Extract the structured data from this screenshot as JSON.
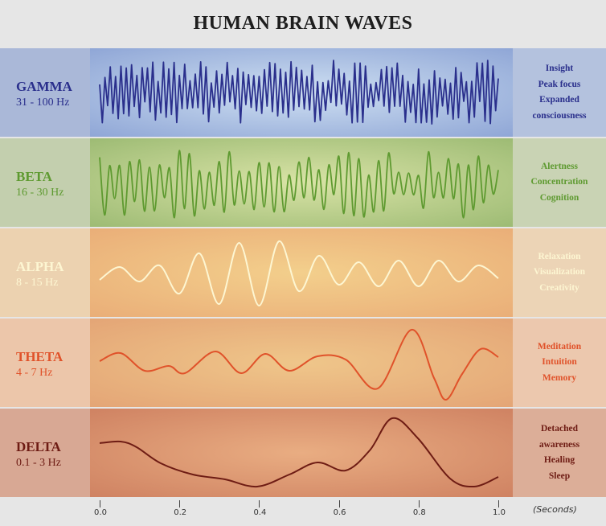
{
  "title": "HUMAN BRAIN WAVES",
  "bands": [
    {
      "name": "GAMMA",
      "freq": "31 - 100 Hz",
      "effects": [
        "Insight",
        "Peak focus",
        "Expanded",
        "consciousness"
      ],
      "color": "#2a2f8c",
      "left_bg": "#aab8d8",
      "mid_center": "#cfe0f2",
      "mid_edge": "#8fa6d6",
      "right_bg": "#b4c2de"
    },
    {
      "name": "BETA",
      "freq": "16 - 30 Hz",
      "effects": [
        "Alertness",
        "Concentration",
        "Cognition"
      ],
      "color": "#5e9a30",
      "left_bg": "#c3cfae",
      "mid_center": "#d9e3a6",
      "mid_edge": "#9dbb74",
      "right_bg": "#c9d3b4"
    },
    {
      "name": "ALPHA",
      "freq": "8 - 15 Hz",
      "effects": [
        "Relaxation",
        "Visualization",
        "Creativity"
      ],
      "color": "#fdf6d2",
      "left_bg": "#ecd2b0",
      "mid_center": "#f3cf8c",
      "mid_edge": "#eaae78",
      "right_bg": "#ecd4b6"
    },
    {
      "name": "THETA",
      "freq": "4 - 7 Hz",
      "effects": [
        "Meditation",
        "Intuition",
        "Memory"
      ],
      "color": "#e0522a",
      "left_bg": "#ecc6aa",
      "mid_center": "#efc68a",
      "mid_edge": "#e4a576",
      "right_bg": "#ecc8ae"
    },
    {
      "name": "DELTA",
      "freq": "0.1 - 3 Hz",
      "effects": [
        "Detached",
        "awareness",
        "Healing",
        "Sleep"
      ],
      "color": "#6e1c14",
      "left_bg": "#d8a894",
      "mid_center": "#e9ad82",
      "mid_edge": "#cf8262",
      "right_bg": "#dcae98"
    }
  ],
  "axis": {
    "ticks": [
      "0.0",
      "0.2",
      "0.4",
      "0.6",
      "0.8",
      "1.0"
    ],
    "unit": "(Seconds)"
  }
}
